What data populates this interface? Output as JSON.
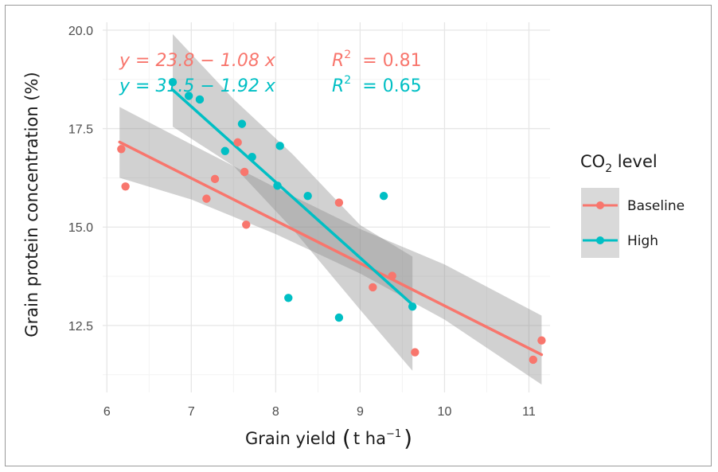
{
  "chart_data": {
    "type": "scatter",
    "xlabel": "Grain yield",
    "xlabel_unit": "t ha",
    "xlabel_unit_exp": "−1",
    "ylabel": "Grain protein concentration (%)",
    "xlim": [
      5.95,
      11.25
    ],
    "ylim": [
      10.8,
      20.2
    ],
    "x_ticks": [
      6,
      7,
      8,
      9,
      10,
      11
    ],
    "y_ticks": [
      12.5,
      15.0,
      17.5,
      20.0
    ],
    "x_tick_labels": [
      "6",
      "7",
      "8",
      "9",
      "10",
      "11"
    ],
    "y_tick_labels": [
      "12.5",
      "15.0",
      "17.5",
      "20.0"
    ],
    "grid": true,
    "theme": "minimal",
    "legend": {
      "title": "CO",
      "title_sub": "2",
      "title_rest": " level",
      "position": "right",
      "items": [
        "Baseline",
        "High"
      ]
    },
    "series": [
      {
        "name": "Baseline",
        "color": "#F8766D",
        "points": [
          [
            6.17,
            16.98
          ],
          [
            6.22,
            16.03
          ],
          [
            7.18,
            15.72
          ],
          [
            7.28,
            16.22
          ],
          [
            7.55,
            17.15
          ],
          [
            7.63,
            16.4
          ],
          [
            7.65,
            15.06
          ],
          [
            8.75,
            15.62
          ],
          [
            9.15,
            13.47
          ],
          [
            9.38,
            13.76
          ],
          [
            9.65,
            11.82
          ],
          [
            11.05,
            11.63
          ],
          [
            11.15,
            12.12
          ]
        ],
        "fit": {
          "intercept": 23.8,
          "slope": -1.08,
          "x_range": [
            6.15,
            11.15
          ]
        },
        "equation": {
          "y_part": "y  =  23.8 − 1.08  x",
          "r_label": "R",
          "r_exp": "2",
          "r_value": "=  0.81"
        }
      },
      {
        "name": "High",
        "color": "#00BFC4",
        "points": [
          [
            6.78,
            18.68
          ],
          [
            6.97,
            18.33
          ],
          [
            7.1,
            18.24
          ],
          [
            7.4,
            16.93
          ],
          [
            7.6,
            17.62
          ],
          [
            7.72,
            16.78
          ],
          [
            8.02,
            16.05
          ],
          [
            8.05,
            17.06
          ],
          [
            8.15,
            13.2
          ],
          [
            8.38,
            15.79
          ],
          [
            8.75,
            12.7
          ],
          [
            9.28,
            15.79
          ],
          [
            9.62,
            12.98
          ]
        ],
        "fit": {
          "intercept": 31.5,
          "slope": -1.92,
          "x_range": [
            6.78,
            9.62
          ]
        },
        "equation": {
          "y_part": "y  =  31.5 − 1.92  x",
          "r_label": "R",
          "r_exp": "2",
          "r_value": "=  0.65"
        }
      }
    ],
    "confidence_bands": [
      {
        "series": "Baseline",
        "x": [
          6.15,
          7.0,
          8.0,
          9.0,
          10.0,
          11.15
        ],
        "lower": [
          16.25,
          15.7,
          14.82,
          13.82,
          12.65,
          11.0
        ],
        "upper": [
          18.05,
          17.1,
          16.0,
          14.95,
          14.05,
          12.75
        ]
      },
      {
        "series": "High",
        "x": [
          6.78,
          7.5,
          8.2,
          9.0,
          9.62
        ],
        "lower": [
          17.55,
          16.55,
          14.95,
          12.9,
          11.35
        ],
        "upper": [
          19.9,
          18.25,
          16.85,
          15.05,
          14.25
        ]
      }
    ],
    "band_color": "#8c8c8c"
  }
}
